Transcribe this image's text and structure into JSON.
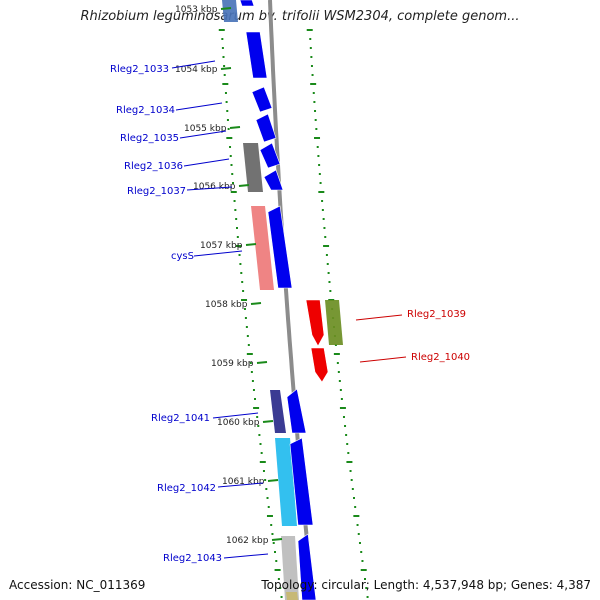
{
  "title": "Rhizobium leguminosarum bv. trifolii WSM2304, complete genom...",
  "footer": {
    "accession": "Accession: NC_011369",
    "summary": "Topology: circular; Length: 4,537,948 bp; Genes: 4,387"
  },
  "colors": {
    "backbone": "#8c8c8c",
    "tick": "#1a8a1a",
    "label_forward": "#0000cc",
    "label_reverse": "#cc0000",
    "kbp_text": "#222222"
  },
  "kbp_labels": [
    "1053 kbp",
    "1054 kbp",
    "1055 kbp",
    "1056 kbp",
    "1057 kbp",
    "1058 kbp",
    "1059 kbp",
    "1060 kbp",
    "1061 kbp",
    "1062 kbp"
  ],
  "genes": [
    {
      "id": "g0",
      "label": "",
      "strand": "forward"
    },
    {
      "id": "g1033",
      "label": "Rleg2_1033",
      "strand": "forward"
    },
    {
      "id": "g1034",
      "label": "Rleg2_1034",
      "strand": "forward"
    },
    {
      "id": "g1035",
      "label": "Rleg2_1035",
      "strand": "forward"
    },
    {
      "id": "g1036",
      "label": "Rleg2_1036",
      "strand": "forward"
    },
    {
      "id": "g1037",
      "label": "Rleg2_1037",
      "strand": "forward"
    },
    {
      "id": "cysS",
      "label": "cysS",
      "strand": "forward"
    },
    {
      "id": "g1039",
      "label": "Rleg2_1039",
      "strand": "reverse"
    },
    {
      "id": "g1040",
      "label": "Rleg2_1040",
      "strand": "reverse"
    },
    {
      "id": "g1041",
      "label": "Rleg2_1041",
      "strand": "forward"
    },
    {
      "id": "g1042",
      "label": "Rleg2_1042",
      "strand": "forward"
    },
    {
      "id": "g1043",
      "label": "Rleg2_1043",
      "strand": "forward"
    }
  ],
  "analysis_tracks": [
    {
      "name": "cog-track-inner",
      "blocks": [
        {
          "color": "#4a74b8"
        },
        {
          "color": "#666666"
        },
        {
          "color": "#ee7a7a"
        },
        {
          "color": "#2a2a8a"
        },
        {
          "color": "#22bbee"
        },
        {
          "color": "#bbbbbb"
        },
        {
          "color": "#c8b870"
        }
      ]
    },
    {
      "name": "cog-track-outer",
      "blocks": [
        {
          "color": "#6b8e23"
        }
      ]
    }
  ]
}
